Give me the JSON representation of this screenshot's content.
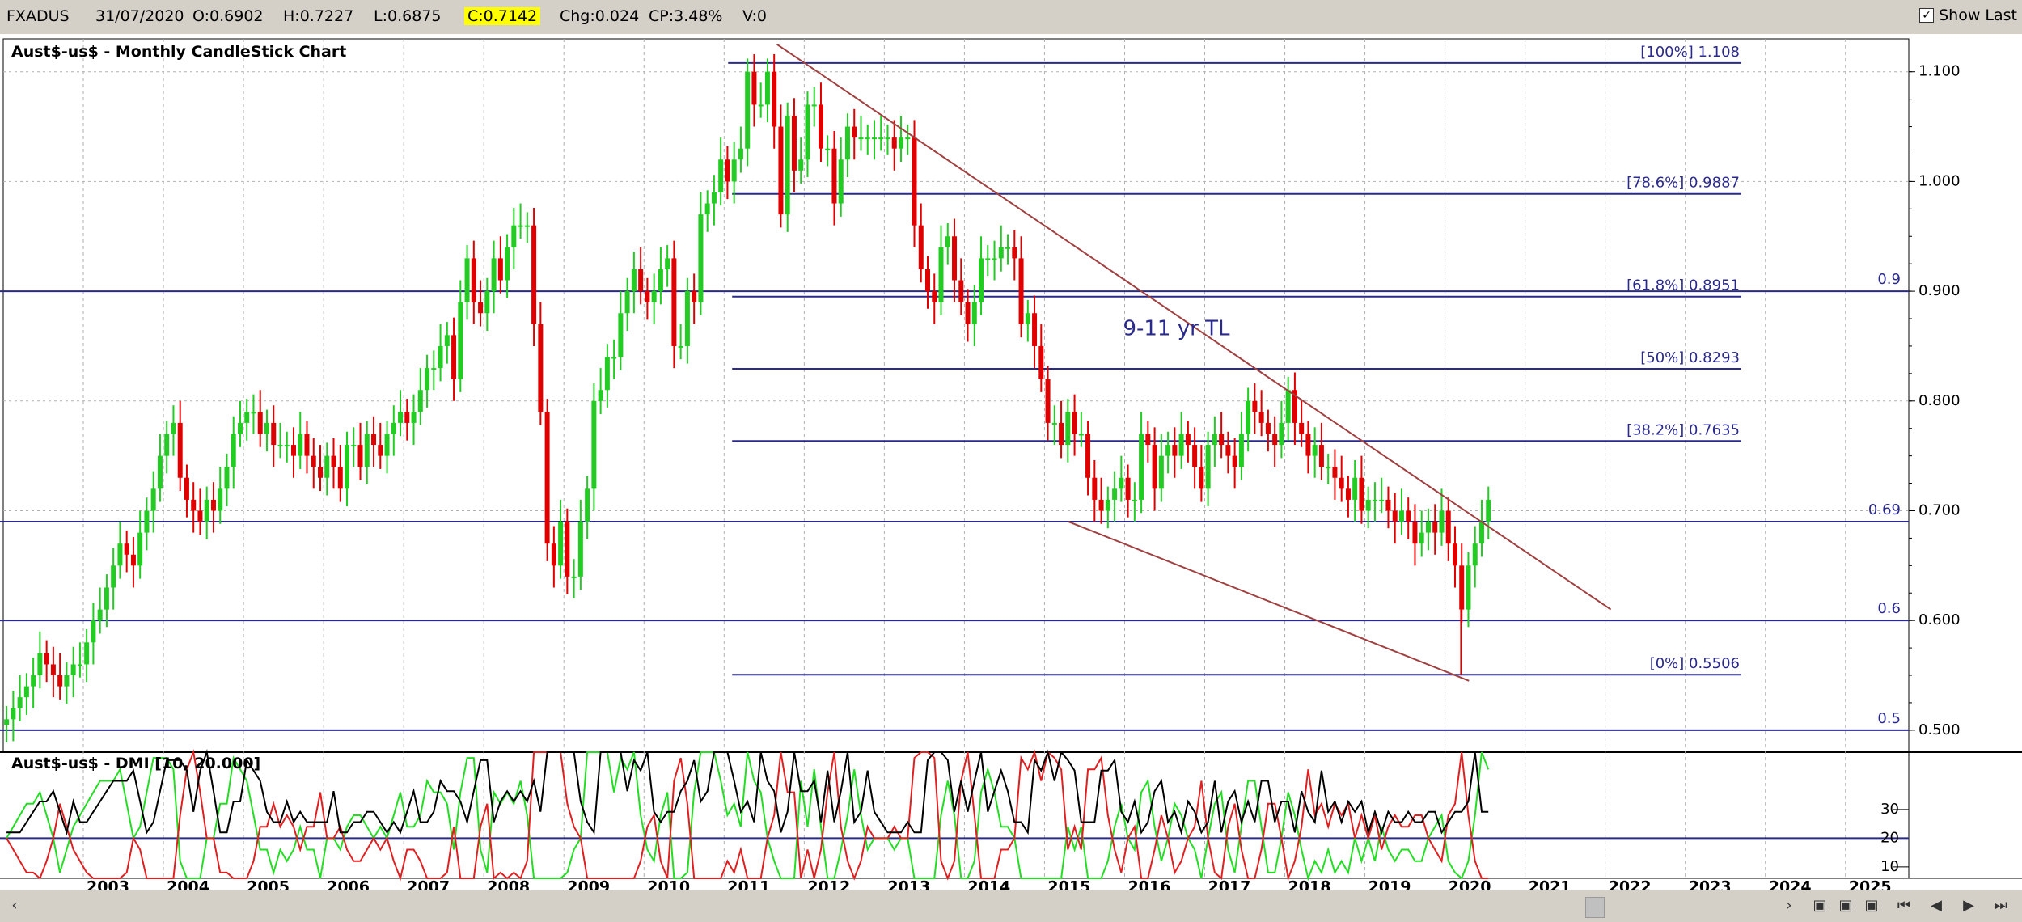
{
  "toolbar": {
    "symbol": "FXADUS",
    "date": "31/07/2020",
    "open": "O:0.6902",
    "high": "H:0.7227",
    "low": "L:0.6875",
    "close": "C:0.7142",
    "change": "Chg:0.024",
    "change_pct": "CP:3.48%",
    "volume": "V:0",
    "show_last": "Show Last",
    "show_last_checked": "✓"
  },
  "colors": {
    "up": "#22cc22",
    "down": "#e00000",
    "fib": "#2a2a8c",
    "trend": "#a04040",
    "dmi_plus": "#22dd22",
    "dmi_minus": "#e02020",
    "adx": "#000000"
  },
  "chart_data": [
    {
      "type": "candlestick",
      "title": "Aust$-us$ - Monthly CandleStick Chart",
      "x_ticks": [
        "2003",
        "2004",
        "2005",
        "2006",
        "2007",
        "2008",
        "2009",
        "2010",
        "2011",
        "2012",
        "2013",
        "2014",
        "2015",
        "2016",
        "2017",
        "2018",
        "2019",
        "2020",
        "2021",
        "2022",
        "2023",
        "2024",
        "2025"
      ],
      "ylim": [
        0.48,
        1.13
      ],
      "y_ticks": [
        "0.500",
        "0.600",
        "0.700",
        "0.800",
        "0.900",
        "1.000",
        "1.100"
      ],
      "series_monthly_close": [
        {
          "year": 2002,
          "values": [
            0.51,
            0.52,
            0.53,
            0.54,
            0.55,
            0.57,
            0.56,
            0.55,
            0.54,
            0.55,
            0.56,
            0.56
          ]
        },
        {
          "year": 2003,
          "values": [
            0.58,
            0.6,
            0.61,
            0.63,
            0.65,
            0.67,
            0.66,
            0.65,
            0.68,
            0.7,
            0.72,
            0.75
          ]
        },
        {
          "year": 2004,
          "values": [
            0.77,
            0.78,
            0.73,
            0.71,
            0.7,
            0.69,
            0.71,
            0.7,
            0.72,
            0.74,
            0.77,
            0.78
          ]
        },
        {
          "year": 2005,
          "values": [
            0.79,
            0.79,
            0.77,
            0.78,
            0.76,
            0.76,
            0.76,
            0.75,
            0.77,
            0.75,
            0.74,
            0.73
          ]
        },
        {
          "year": 2006,
          "values": [
            0.75,
            0.74,
            0.72,
            0.76,
            0.76,
            0.74,
            0.77,
            0.76,
            0.75,
            0.77,
            0.78,
            0.79
          ]
        },
        {
          "year": 2007,
          "values": [
            0.78,
            0.79,
            0.81,
            0.83,
            0.83,
            0.85,
            0.86,
            0.82,
            0.89,
            0.93,
            0.89,
            0.88
          ]
        },
        {
          "year": 2008,
          "values": [
            0.9,
            0.93,
            0.91,
            0.94,
            0.96,
            0.96,
            0.96,
            0.87,
            0.79,
            0.67,
            0.65,
            0.69
          ]
        },
        {
          "year": 2009,
          "values": [
            0.64,
            0.64,
            0.69,
            0.72,
            0.8,
            0.81,
            0.84,
            0.84,
            0.88,
            0.9,
            0.92,
            0.9
          ]
        },
        {
          "year": 2010,
          "values": [
            0.89,
            0.9,
            0.92,
            0.93,
            0.85,
            0.85,
            0.9,
            0.89,
            0.97,
            0.98,
            0.99,
            1.02
          ]
        },
        {
          "year": 2011,
          "values": [
            1.0,
            1.02,
            1.03,
            1.1,
            1.07,
            1.07,
            1.1,
            1.05,
            0.97,
            1.06,
            1.01,
            1.02
          ]
        },
        {
          "year": 2012,
          "values": [
            1.07,
            1.07,
            1.03,
            1.03,
            0.98,
            1.02,
            1.05,
            1.04,
            1.04,
            1.04,
            1.04,
            1.04
          ]
        },
        {
          "year": 2013,
          "values": [
            1.04,
            1.03,
            1.04,
            1.04,
            0.96,
            0.92,
            0.9,
            0.89,
            0.94,
            0.95,
            0.91,
            0.89
          ]
        },
        {
          "year": 2014,
          "values": [
            0.87,
            0.89,
            0.93,
            0.93,
            0.93,
            0.94,
            0.94,
            0.93,
            0.87,
            0.88,
            0.85,
            0.82
          ]
        },
        {
          "year": 2015,
          "values": [
            0.78,
            0.78,
            0.76,
            0.79,
            0.77,
            0.77,
            0.73,
            0.71,
            0.7,
            0.71,
            0.72,
            0.73
          ]
        },
        {
          "year": 2016,
          "values": [
            0.71,
            0.71,
            0.77,
            0.76,
            0.72,
            0.75,
            0.76,
            0.75,
            0.77,
            0.76,
            0.74,
            0.72
          ]
        },
        {
          "year": 2017,
          "values": [
            0.76,
            0.77,
            0.76,
            0.75,
            0.74,
            0.77,
            0.8,
            0.79,
            0.78,
            0.77,
            0.76,
            0.78
          ]
        },
        {
          "year": 2018,
          "values": [
            0.81,
            0.78,
            0.77,
            0.75,
            0.76,
            0.74,
            0.74,
            0.73,
            0.72,
            0.71,
            0.73,
            0.7
          ]
        },
        {
          "year": 2019,
          "values": [
            0.71,
            0.71,
            0.71,
            0.7,
            0.69,
            0.7,
            0.69,
            0.67,
            0.68,
            0.69,
            0.68,
            0.7
          ]
        },
        {
          "year": 2020,
          "values": [
            0.67,
            0.65,
            0.61,
            0.65,
            0.67,
            0.69,
            0.71
          ]
        }
      ],
      "hlines": [
        {
          "value": 0.9,
          "label": "0.9"
        },
        {
          "value": 0.69,
          "label": "0.69"
        },
        {
          "value": 0.6,
          "label": "0.6"
        },
        {
          "value": 0.5,
          "label": "0.5"
        }
      ],
      "fib_levels": [
        {
          "value": 1.108,
          "label": "[100%] 1.108"
        },
        {
          "value": 0.9887,
          "label": "[78.6%] 0.9887"
        },
        {
          "value": 0.8951,
          "label": "[61.8%] 0.8951"
        },
        {
          "value": 0.8293,
          "label": "[50%] 0.8293"
        },
        {
          "value": 0.7635,
          "label": "[38.2%] 0.7635"
        },
        {
          "value": 0.5506,
          "label": "[0%] 0.5506"
        }
      ],
      "trendlines": [
        {
          "from": [
            2011.66,
            1.125
          ],
          "to": [
            2022.07,
            0.61
          ]
        },
        {
          "from": [
            2015.3,
            0.69
          ],
          "to": [
            2020.3,
            0.545
          ]
        }
      ],
      "annotation": {
        "text": "9-11 yr TL",
        "x": 2015.98,
        "y": 0.86
      }
    },
    {
      "type": "line",
      "title": "Aust$-us$ - DMI [10, 20.000]",
      "y_ticks": [
        "10",
        "20",
        "30"
      ],
      "ylim": [
        6,
        50
      ],
      "hline": 20
    }
  ],
  "bottom_nav": {
    "scroll_left": "‹",
    "scroll_right": "›",
    "first": "⏮",
    "prev": "◀",
    "next": "▶",
    "last": "⏭"
  }
}
